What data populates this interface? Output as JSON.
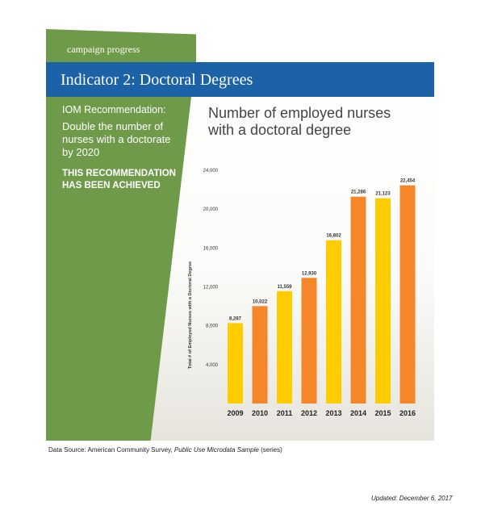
{
  "campaign_label": "campaign progress",
  "banner_title": "Indicator 2: Doctoral Degrees",
  "recommendation": {
    "heading": "IOM Recommendation:",
    "goal": "Double the number of nurses with a doctorate by 2020",
    "status": "THIS RECOMMENDATION HAS BEEN ACHIEVED"
  },
  "colors": {
    "orange": "#f5862a",
    "yellow": "#ffcc00",
    "green": "#6f9a4a",
    "blue": "#1c62a6"
  },
  "chart_data": {
    "type": "bar",
    "title": "Number of employed nurses with a doctoral degree",
    "ylabel": "Total # of Employed Nurses with a Doctoral Degree",
    "xlabel": "",
    "categories": [
      "2009",
      "2010",
      "2011",
      "2012",
      "2013",
      "2014",
      "2015",
      "2016"
    ],
    "values": [
      8267,
      10022,
      11559,
      12930,
      16802,
      21286,
      21123,
      22454
    ],
    "value_labels": [
      "8,267",
      "10,022",
      "11,559",
      "12,930",
      "16,802",
      "21,286",
      "21,123",
      "22,454"
    ],
    "bar_colors": [
      "#ffcc00",
      "#f5862a",
      "#ffcc00",
      "#f5862a",
      "#ffcc00",
      "#f5862a",
      "#ffcc00",
      "#f5862a"
    ],
    "yticks": [
      4000,
      8000,
      12000,
      16000,
      20000,
      24000
    ],
    "ytick_labels": [
      "4,000",
      "8,000",
      "12,000",
      "16,000",
      "20,000",
      "24,000"
    ],
    "ylim": [
      0,
      24000
    ],
    "grid": false
  },
  "footer": {
    "source_prefix": "Data Source: American Community Survey, ",
    "source_italic": "Public Use Microdata Sample",
    "source_suffix": " (series)",
    "updated": "Updated: December 6, 2017"
  }
}
